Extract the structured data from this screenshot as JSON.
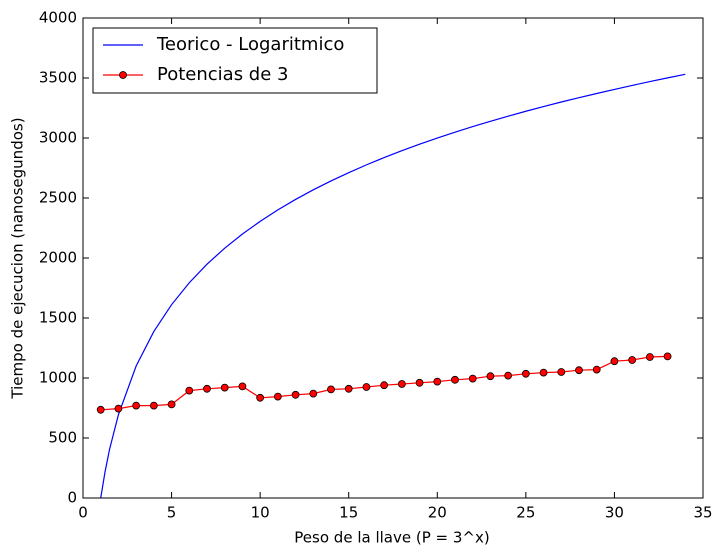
{
  "chart_data": {
    "type": "line",
    "xlabel": "Peso de la llave (P = 3^x)",
    "ylabel": "Tiempo de ejecucion (nanosegundos)",
    "xlim": [
      0,
      35
    ],
    "xticks": [
      0,
      5,
      10,
      15,
      20,
      25,
      30,
      35
    ],
    "ylim": [
      0,
      4000
    ],
    "yticks": [
      0,
      500,
      1000,
      1500,
      2000,
      2500,
      3000,
      3500,
      4000
    ],
    "grid": false,
    "legend": "upper-left",
    "series": [
      {
        "name": "Teorico - Logaritmico",
        "color": "#0000ff",
        "marker": false,
        "x": [
          1,
          1.25,
          1.5,
          2,
          3,
          4,
          5,
          6,
          7,
          8,
          9,
          10,
          11,
          12,
          13,
          14,
          15,
          16,
          17,
          18,
          19,
          20,
          21,
          22,
          23,
          24,
          25,
          26,
          27,
          28,
          29,
          30,
          31,
          32,
          33,
          34
        ],
        "values": [
          0,
          223,
          406,
          694,
          1100,
          1388,
          1611,
          1794,
          1948,
          2082,
          2200,
          2305,
          2401,
          2488,
          2568,
          2642,
          2711,
          2776,
          2837,
          2894,
          2948,
          2999,
          3048,
          3095,
          3139,
          3182,
          3223,
          3262,
          3300,
          3336,
          3371,
          3405,
          3438,
          3470,
          3501,
          3531
        ]
      },
      {
        "name": "Potencias de 3",
        "color": "#ff0000",
        "marker": true,
        "x": [
          1,
          2,
          3,
          4,
          5,
          6,
          7,
          8,
          9,
          10,
          11,
          12,
          13,
          14,
          15,
          16,
          17,
          18,
          19,
          20,
          21,
          22,
          23,
          24,
          25,
          26,
          27,
          28,
          29,
          30,
          31,
          32,
          33
        ],
        "values": [
          735,
          745,
          770,
          770,
          780,
          895,
          910,
          920,
          930,
          835,
          845,
          860,
          870,
          905,
          910,
          925,
          940,
          950,
          960,
          970,
          985,
          995,
          1015,
          1020,
          1035,
          1045,
          1050,
          1065,
          1070,
          1140,
          1150,
          1175,
          1180
        ]
      }
    ]
  }
}
